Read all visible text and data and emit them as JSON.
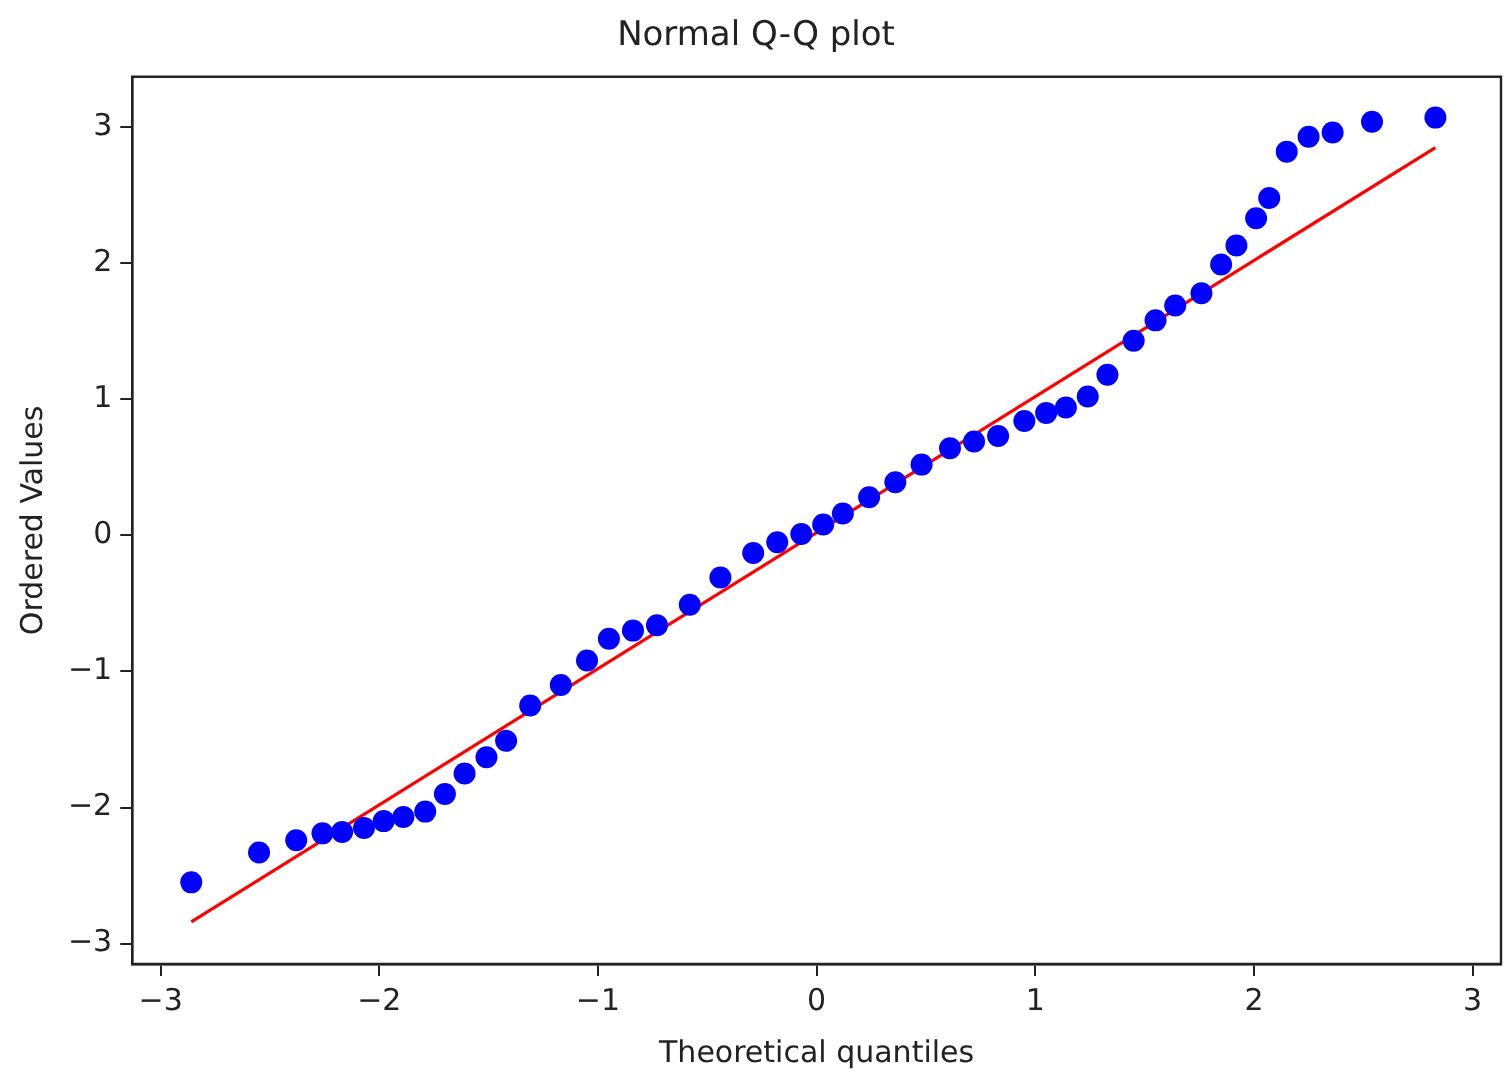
{
  "chart_data": {
    "type": "scatter",
    "title": "Normal Q-Q plot",
    "xlabel": "Theoretical quantiles",
    "ylabel": "Ordered Values",
    "xlim": [
      -3.13,
      3.13
    ],
    "ylim": [
      -3.15,
      3.37
    ],
    "xticks": [
      -3,
      -2,
      -1,
      0,
      1,
      2,
      3
    ],
    "yticks": [
      -3,
      -2,
      -1,
      0,
      1,
      2,
      3
    ],
    "grid": false,
    "legend": false,
    "marker": "circle",
    "series": [
      {
        "color": "#0000ff",
        "x": [
          -2.86,
          -2.55,
          -2.38,
          -2.26,
          -2.17,
          -2.07,
          -1.98,
          -1.89,
          -1.79,
          -1.7,
          -1.61,
          -1.51,
          -1.42,
          -1.31,
          -1.17,
          -1.05,
          -0.95,
          -0.84,
          -0.73,
          -0.58,
          -0.44,
          -0.29,
          -0.18,
          -0.07,
          0.03,
          0.12,
          0.24,
          0.36,
          0.48,
          0.61,
          0.72,
          0.83,
          0.95,
          1.05,
          1.14,
          1.24,
          1.33,
          1.45,
          1.55,
          1.64,
          1.76,
          1.85,
          1.92,
          2.01,
          2.07,
          2.15,
          2.25,
          2.36,
          2.54,
          2.83
        ],
        "values": [
          -2.55,
          -2.33,
          -2.24,
          -2.19,
          -2.18,
          -2.15,
          -2.1,
          -2.07,
          -2.03,
          -1.9,
          -1.75,
          -1.63,
          -1.51,
          -1.25,
          -1.1,
          -0.92,
          -0.76,
          -0.7,
          -0.66,
          -0.51,
          -0.31,
          -0.13,
          -0.05,
          0.01,
          0.08,
          0.16,
          0.28,
          0.39,
          0.52,
          0.64,
          0.69,
          0.73,
          0.84,
          0.9,
          0.94,
          1.02,
          1.18,
          1.43,
          1.58,
          1.69,
          1.78,
          1.99,
          2.13,
          2.33,
          2.48,
          2.82,
          2.93,
          2.96,
          3.04,
          3.07
        ]
      },
      {
        "type": "line",
        "color": "#ff0000",
        "marker": "none",
        "line_style": "solid",
        "x": [
          -2.86,
          2.83
        ],
        "values": [
          -2.84,
          2.85
        ]
      }
    ]
  }
}
